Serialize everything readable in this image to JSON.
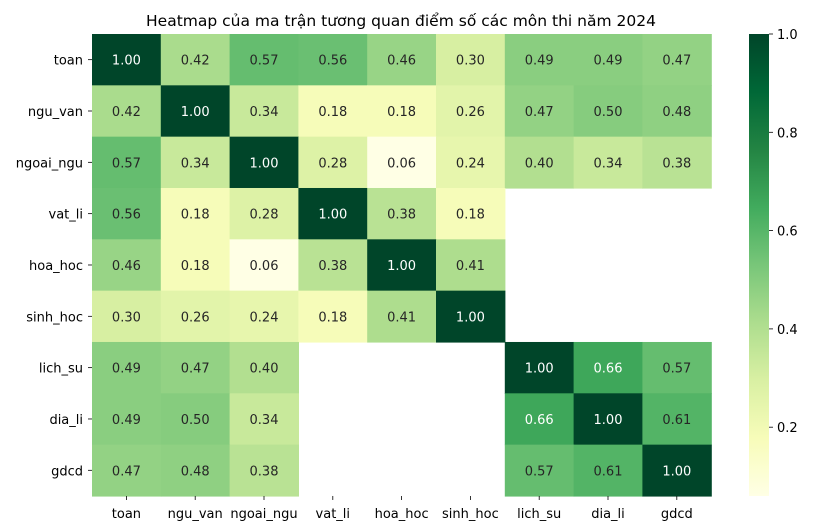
{
  "chart_data": {
    "type": "heatmap",
    "title": "Heatmap của ma trận tương quan điểm số các môn thi năm 2024",
    "rows": [
      "toan",
      "ngu_van",
      "ngoai_ngu",
      "vat_li",
      "hoa_hoc",
      "sinh_hoc",
      "lich_su",
      "dia_li",
      "gdcd"
    ],
    "columns": [
      "toan",
      "ngu_van",
      "ngoai_ngu",
      "vat_li",
      "hoa_hoc",
      "sinh_hoc",
      "lich_su",
      "dia_li",
      "gdcd"
    ],
    "values": [
      [
        1.0,
        0.42,
        0.57,
        0.56,
        0.46,
        0.3,
        0.49,
        0.49,
        0.47
      ],
      [
        0.42,
        1.0,
        0.34,
        0.18,
        0.18,
        0.26,
        0.47,
        0.5,
        0.48
      ],
      [
        0.57,
        0.34,
        1.0,
        0.28,
        0.06,
        0.24,
        0.4,
        0.34,
        0.38
      ],
      [
        0.56,
        0.18,
        0.28,
        1.0,
        0.38,
        0.18,
        null,
        null,
        null
      ],
      [
        0.46,
        0.18,
        0.06,
        0.38,
        1.0,
        0.41,
        null,
        null,
        null
      ],
      [
        0.3,
        0.26,
        0.24,
        0.18,
        0.41,
        1.0,
        null,
        null,
        null
      ],
      [
        0.49,
        0.47,
        0.4,
        null,
        null,
        null,
        1.0,
        0.66,
        0.57
      ],
      [
        0.49,
        0.5,
        0.34,
        null,
        null,
        null,
        0.66,
        1.0,
        0.61
      ],
      [
        0.47,
        0.48,
        0.38,
        null,
        null,
        null,
        0.57,
        0.61,
        1.0
      ]
    ],
    "colormap": "YlGn",
    "colorbar": {
      "ticks": [
        0.2,
        0.4,
        0.6,
        0.8,
        1.0
      ],
      "tick_labels": [
        "0.2",
        "0.4",
        "0.6",
        "0.8",
        "1.0"
      ],
      "range": [
        0.06,
        1.0
      ]
    },
    "annotation_format": "0.00"
  }
}
